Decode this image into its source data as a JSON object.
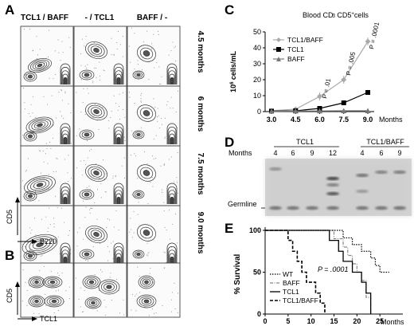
{
  "panel_a": {
    "letter": "A",
    "col_labels": [
      "TCL1 / BAFF",
      "- / TCL1",
      "BAFF / -"
    ],
    "row_labels": [
      "4.5 months",
      "6 months",
      "7.5 months",
      "9.0 months"
    ],
    "y_axis": "CD5",
    "x_axis": "B220"
  },
  "panel_b": {
    "letter": "B",
    "y_axis": "CD5",
    "x_axis": "TCL1"
  },
  "panel_c": {
    "letter": "C",
    "title_prefix": "Blood CD",
    "title_sup1": "-",
    "title_mid": "3",
    "title_rest": " CD5",
    "title_sup2": "+",
    "title_suffix": "cells",
    "ylabel_base": "10",
    "ylabel_exp": "6",
    "ylabel_rest": " cells/mL",
    "xlabel": "Months",
    "p_values": [
      "P = .01",
      "P = .005",
      "P = .0001"
    ]
  },
  "panel_d": {
    "letter": "D",
    "months_label": "Months",
    "group1": "TCL1",
    "group2": "TCL1/BAFF",
    "lanes": [
      "4",
      "6",
      "9",
      "12",
      "4",
      "6",
      "9"
    ],
    "germline": "Germline"
  },
  "panel_e": {
    "letter": "E",
    "ylabel": "% Survival",
    "xlabel": "Months",
    "p_value": "P = .0001",
    "legend": [
      "WT",
      "BAFF",
      "TCL1",
      "TCL1/BAFF"
    ]
  },
  "chart_data": [
    {
      "type": "line",
      "x": [
        3.0,
        4.5,
        6.0,
        7.5,
        9.0
      ],
      "xticks": [
        "3.0",
        "4.5",
        "6.0",
        "7.5",
        "9.0"
      ],
      "ylim": [
        0,
        50
      ],
      "yticks": [
        0,
        10,
        20,
        30,
        40,
        50
      ],
      "series": [
        {
          "name": "TCL1/BAFF",
          "values": [
            0.5,
            1.5,
            9.5,
            20,
            44
          ],
          "color": "#aaaaaa",
          "marker": "diamond"
        },
        {
          "name": "TCL1",
          "values": [
            0.3,
            0.5,
            2,
            5.5,
            12
          ],
          "color": "#000000",
          "marker": "square"
        },
        {
          "name": "BAFF",
          "values": [
            0.2,
            0.3,
            0.4,
            0.5,
            0.5
          ],
          "color": "#777777",
          "marker": "triangle"
        }
      ]
    },
    {
      "type": "line",
      "xlim": [
        0,
        30
      ],
      "xticks": [
        0,
        5,
        10,
        15,
        20,
        25
      ],
      "ylim": [
        0,
        100
      ],
      "yticks": [
        0,
        50,
        100
      ],
      "series": [
        {
          "name": "WT",
          "points": [
            [
              0,
              100
            ],
            [
              17,
              100
            ],
            [
              17,
              91
            ],
            [
              19,
              91
            ],
            [
              19,
              83
            ],
            [
              21,
              83
            ],
            [
              21,
              75
            ],
            [
              23,
              75
            ],
            [
              23,
              67
            ],
            [
              24,
              67
            ],
            [
              24,
              58
            ],
            [
              25,
              58
            ],
            [
              25,
              50
            ],
            [
              27,
              50
            ]
          ]
        },
        {
          "name": "BAFF",
          "points": [
            [
              0,
              100
            ],
            [
              15,
              100
            ],
            [
              15,
              90
            ],
            [
              17,
              90
            ],
            [
              17,
              80
            ],
            [
              18,
              80
            ],
            [
              18,
              70
            ],
            [
              19,
              70
            ],
            [
              19,
              60
            ],
            [
              20,
              60
            ],
            [
              20,
              50
            ],
            [
              21,
              50
            ],
            [
              21,
              40
            ],
            [
              22,
              40
            ],
            [
              22,
              20
            ],
            [
              23,
              20
            ],
            [
              23,
              0
            ]
          ]
        },
        {
          "name": "TCL1",
          "points": [
            [
              0,
              100
            ],
            [
              14,
              100
            ],
            [
              14,
              88
            ],
            [
              16,
              88
            ],
            [
              16,
              75
            ],
            [
              17,
              75
            ],
            [
              17,
              63
            ],
            [
              19,
              63
            ],
            [
              19,
              50
            ],
            [
              21,
              50
            ],
            [
              21,
              38
            ],
            [
              22,
              38
            ],
            [
              22,
              25
            ],
            [
              23,
              25
            ],
            [
              23,
              0
            ]
          ]
        },
        {
          "name": "TCL1/BAFF",
          "points": [
            [
              0,
              100
            ],
            [
              5,
              100
            ],
            [
              5,
              88
            ],
            [
              6,
              88
            ],
            [
              6,
              75
            ],
            [
              7,
              75
            ],
            [
              7,
              63
            ],
            [
              8,
              63
            ],
            [
              8,
              50
            ],
            [
              9,
              50
            ],
            [
              9,
              38
            ],
            [
              11,
              38
            ],
            [
              11,
              25
            ],
            [
              12,
              25
            ],
            [
              12,
              13
            ],
            [
              13,
              13
            ],
            [
              13,
              0
            ]
          ]
        }
      ]
    }
  ]
}
